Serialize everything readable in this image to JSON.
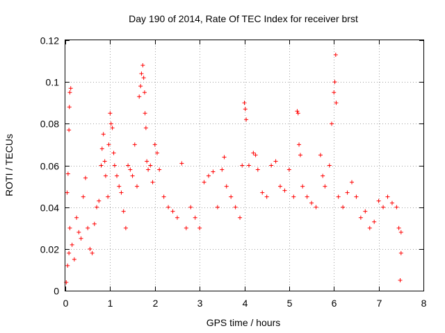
{
  "chart_data": {
    "type": "scatter",
    "title": "Day 190 of 2014, Rate Of TEC Index for receiver brst",
    "xlabel": "GPS time / hours",
    "ylabel": "ROTI / TECUs",
    "xlim": [
      0,
      8
    ],
    "ylim": [
      0,
      0.12
    ],
    "x_ticks": [
      0,
      1,
      2,
      3,
      4,
      5,
      6,
      7,
      8
    ],
    "x_tick_labels": [
      "0",
      "1",
      "2",
      "3",
      "4",
      "5",
      "6",
      "7",
      "8"
    ],
    "y_ticks": [
      0,
      0.02,
      0.04,
      0.06,
      0.08,
      0.1,
      0.12
    ],
    "y_tick_labels": [
      "0",
      "0.02",
      "0.04",
      "0.06",
      "0.08",
      "0.1",
      "0.12"
    ],
    "grid": true,
    "marker": "+",
    "color": "#ff0000",
    "series": [
      {
        "name": "ROTI",
        "points": [
          [
            0.02,
            0.004
          ],
          [
            0.05,
            0.012
          ],
          [
            0.08,
            0.018
          ],
          [
            0.1,
            0.03
          ],
          [
            0.04,
            0.047
          ],
          [
            0.06,
            0.056
          ],
          [
            0.08,
            0.077
          ],
          [
            0.09,
            0.088
          ],
          [
            0.1,
            0.095
          ],
          [
            0.12,
            0.097
          ],
          [
            0.15,
            0.022
          ],
          [
            0.2,
            0.015
          ],
          [
            0.25,
            0.035
          ],
          [
            0.3,
            0.028
          ],
          [
            0.35,
            0.025
          ],
          [
            0.4,
            0.045
          ],
          [
            0.45,
            0.054
          ],
          [
            0.5,
            0.03
          ],
          [
            0.55,
            0.02
          ],
          [
            0.6,
            0.018
          ],
          [
            0.65,
            0.032
          ],
          [
            0.7,
            0.04
          ],
          [
            0.75,
            0.043
          ],
          [
            0.8,
            0.06
          ],
          [
            0.82,
            0.068
          ],
          [
            0.85,
            0.075
          ],
          [
            0.88,
            0.062
          ],
          [
            0.9,
            0.055
          ],
          [
            0.95,
            0.045
          ],
          [
            0.97,
            0.07
          ],
          [
            1.0,
            0.085
          ],
          [
            1.02,
            0.08
          ],
          [
            1.05,
            0.078
          ],
          [
            1.08,
            0.066
          ],
          [
            1.1,
            0.06
          ],
          [
            1.15,
            0.055
          ],
          [
            1.2,
            0.05
          ],
          [
            1.25,
            0.047
          ],
          [
            1.3,
            0.038
          ],
          [
            1.35,
            0.03
          ],
          [
            1.4,
            0.06
          ],
          [
            1.45,
            0.058
          ],
          [
            1.5,
            0.055
          ],
          [
            1.55,
            0.07
          ],
          [
            1.6,
            0.05
          ],
          [
            1.65,
            0.093
          ],
          [
            1.68,
            0.098
          ],
          [
            1.7,
            0.104
          ],
          [
            1.73,
            0.108
          ],
          [
            1.75,
            0.102
          ],
          [
            1.77,
            0.095
          ],
          [
            1.78,
            0.085
          ],
          [
            1.8,
            0.078
          ],
          [
            1.82,
            0.062
          ],
          [
            1.85,
            0.058
          ],
          [
            1.9,
            0.06
          ],
          [
            1.95,
            0.052
          ],
          [
            2.0,
            0.07
          ],
          [
            2.05,
            0.066
          ],
          [
            2.1,
            0.058
          ],
          [
            2.2,
            0.045
          ],
          [
            2.3,
            0.04
          ],
          [
            2.4,
            0.038
          ],
          [
            2.5,
            0.035
          ],
          [
            2.6,
            0.061
          ],
          [
            2.7,
            0.03
          ],
          [
            2.8,
            0.04
          ],
          [
            2.9,
            0.035
          ],
          [
            3.0,
            0.03
          ],
          [
            3.1,
            0.052
          ],
          [
            3.2,
            0.055
          ],
          [
            3.3,
            0.057
          ],
          [
            3.4,
            0.04
          ],
          [
            3.5,
            0.058
          ],
          [
            3.55,
            0.064
          ],
          [
            3.6,
            0.05
          ],
          [
            3.7,
            0.045
          ],
          [
            3.8,
            0.04
          ],
          [
            3.9,
            0.035
          ],
          [
            3.95,
            0.06
          ],
          [
            4.0,
            0.09
          ],
          [
            4.02,
            0.087
          ],
          [
            4.04,
            0.082
          ],
          [
            4.1,
            0.06
          ],
          [
            4.2,
            0.066
          ],
          [
            4.25,
            0.065
          ],
          [
            4.3,
            0.058
          ],
          [
            4.4,
            0.047
          ],
          [
            4.5,
            0.045
          ],
          [
            4.6,
            0.06
          ],
          [
            4.7,
            0.062
          ],
          [
            4.8,
            0.05
          ],
          [
            4.9,
            0.048
          ],
          [
            5.0,
            0.058
          ],
          [
            5.1,
            0.045
          ],
          [
            5.18,
            0.086
          ],
          [
            5.2,
            0.085
          ],
          [
            5.22,
            0.07
          ],
          [
            5.25,
            0.065
          ],
          [
            5.3,
            0.05
          ],
          [
            5.4,
            0.045
          ],
          [
            5.5,
            0.042
          ],
          [
            5.6,
            0.04
          ],
          [
            5.7,
            0.065
          ],
          [
            5.75,
            0.055
          ],
          [
            5.8,
            0.05
          ],
          [
            5.9,
            0.06
          ],
          [
            5.95,
            0.08
          ],
          [
            6.0,
            0.095
          ],
          [
            6.02,
            0.1
          ],
          [
            6.04,
            0.113
          ],
          [
            6.05,
            0.09
          ],
          [
            6.1,
            0.045
          ],
          [
            6.2,
            0.04
          ],
          [
            6.3,
            0.047
          ],
          [
            6.4,
            0.052
          ],
          [
            6.5,
            0.045
          ],
          [
            6.6,
            0.035
          ],
          [
            6.7,
            0.038
          ],
          [
            6.8,
            0.03
          ],
          [
            6.9,
            0.033
          ],
          [
            7.0,
            0.043
          ],
          [
            7.1,
            0.04
          ],
          [
            7.2,
            0.045
          ],
          [
            7.3,
            0.042
          ],
          [
            7.4,
            0.04
          ],
          [
            7.45,
            0.03
          ],
          [
            7.5,
            0.028
          ],
          [
            7.48,
            0.005
          ],
          [
            7.5,
            0.018
          ]
        ]
      }
    ]
  }
}
